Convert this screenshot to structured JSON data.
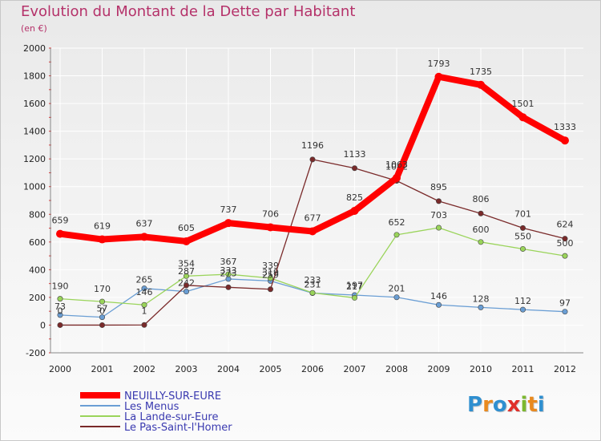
{
  "title": "Evolution du Montant de la Dette par Habitant",
  "subtitle": "(en €)",
  "logo": {
    "text": "Proxiti",
    "letters": [
      "P",
      "r",
      "o",
      "x",
      "i",
      "t",
      "i"
    ],
    "colors": [
      "#2f8fd0",
      "#e98a1f",
      "#2f8fd0",
      "#e0302a",
      "#7cb82f",
      "#e98a1f",
      "#2f8fd0"
    ]
  },
  "chart_data": {
    "type": "line",
    "title": "Evolution du Montant de la Dette par Habitant",
    "subtitle": "(en €)",
    "xlabel": "",
    "ylabel": "",
    "x": [
      "2000",
      "2001",
      "2002",
      "2003",
      "2004",
      "2005",
      "2006",
      "2007",
      "2008",
      "2009",
      "2010",
      "2011",
      "2012"
    ],
    "ylim": [
      -200,
      2000
    ],
    "yticks": [
      -200,
      0,
      200,
      400,
      600,
      800,
      1000,
      1200,
      1400,
      1600,
      1800,
      2000
    ],
    "grid": true,
    "legend_position": "bottom-left",
    "series": [
      {
        "name": "NEUILLY-SUR-EURE",
        "color": "#ff0000",
        "width": 8,
        "values": [
          659,
          619,
          637,
          605,
          737,
          706,
          677,
          825,
          1063,
          1793,
          1735,
          1501,
          1333
        ]
      },
      {
        "name": "Les Menus",
        "color": "#6a9ed4",
        "width": 1.3,
        "values": [
          73,
          57,
          265,
          242,
          333,
          319,
          231,
          217,
          201,
          146,
          128,
          112,
          97
        ]
      },
      {
        "name": "La Lande-sur-Eure",
        "color": "#9ad45a",
        "width": 1.3,
        "values": [
          190,
          170,
          146,
          354,
          367,
          339,
          233,
          197,
          652,
          703,
          600,
          550,
          500
        ]
      },
      {
        "name": "Le Pas-Saint-l'Homer",
        "color": "#7a2a2a",
        "width": 1.3,
        "values": [
          0,
          0,
          1,
          287,
          273,
          259,
          1196,
          1133,
          1042,
          895,
          806,
          701,
          624
        ]
      }
    ]
  }
}
